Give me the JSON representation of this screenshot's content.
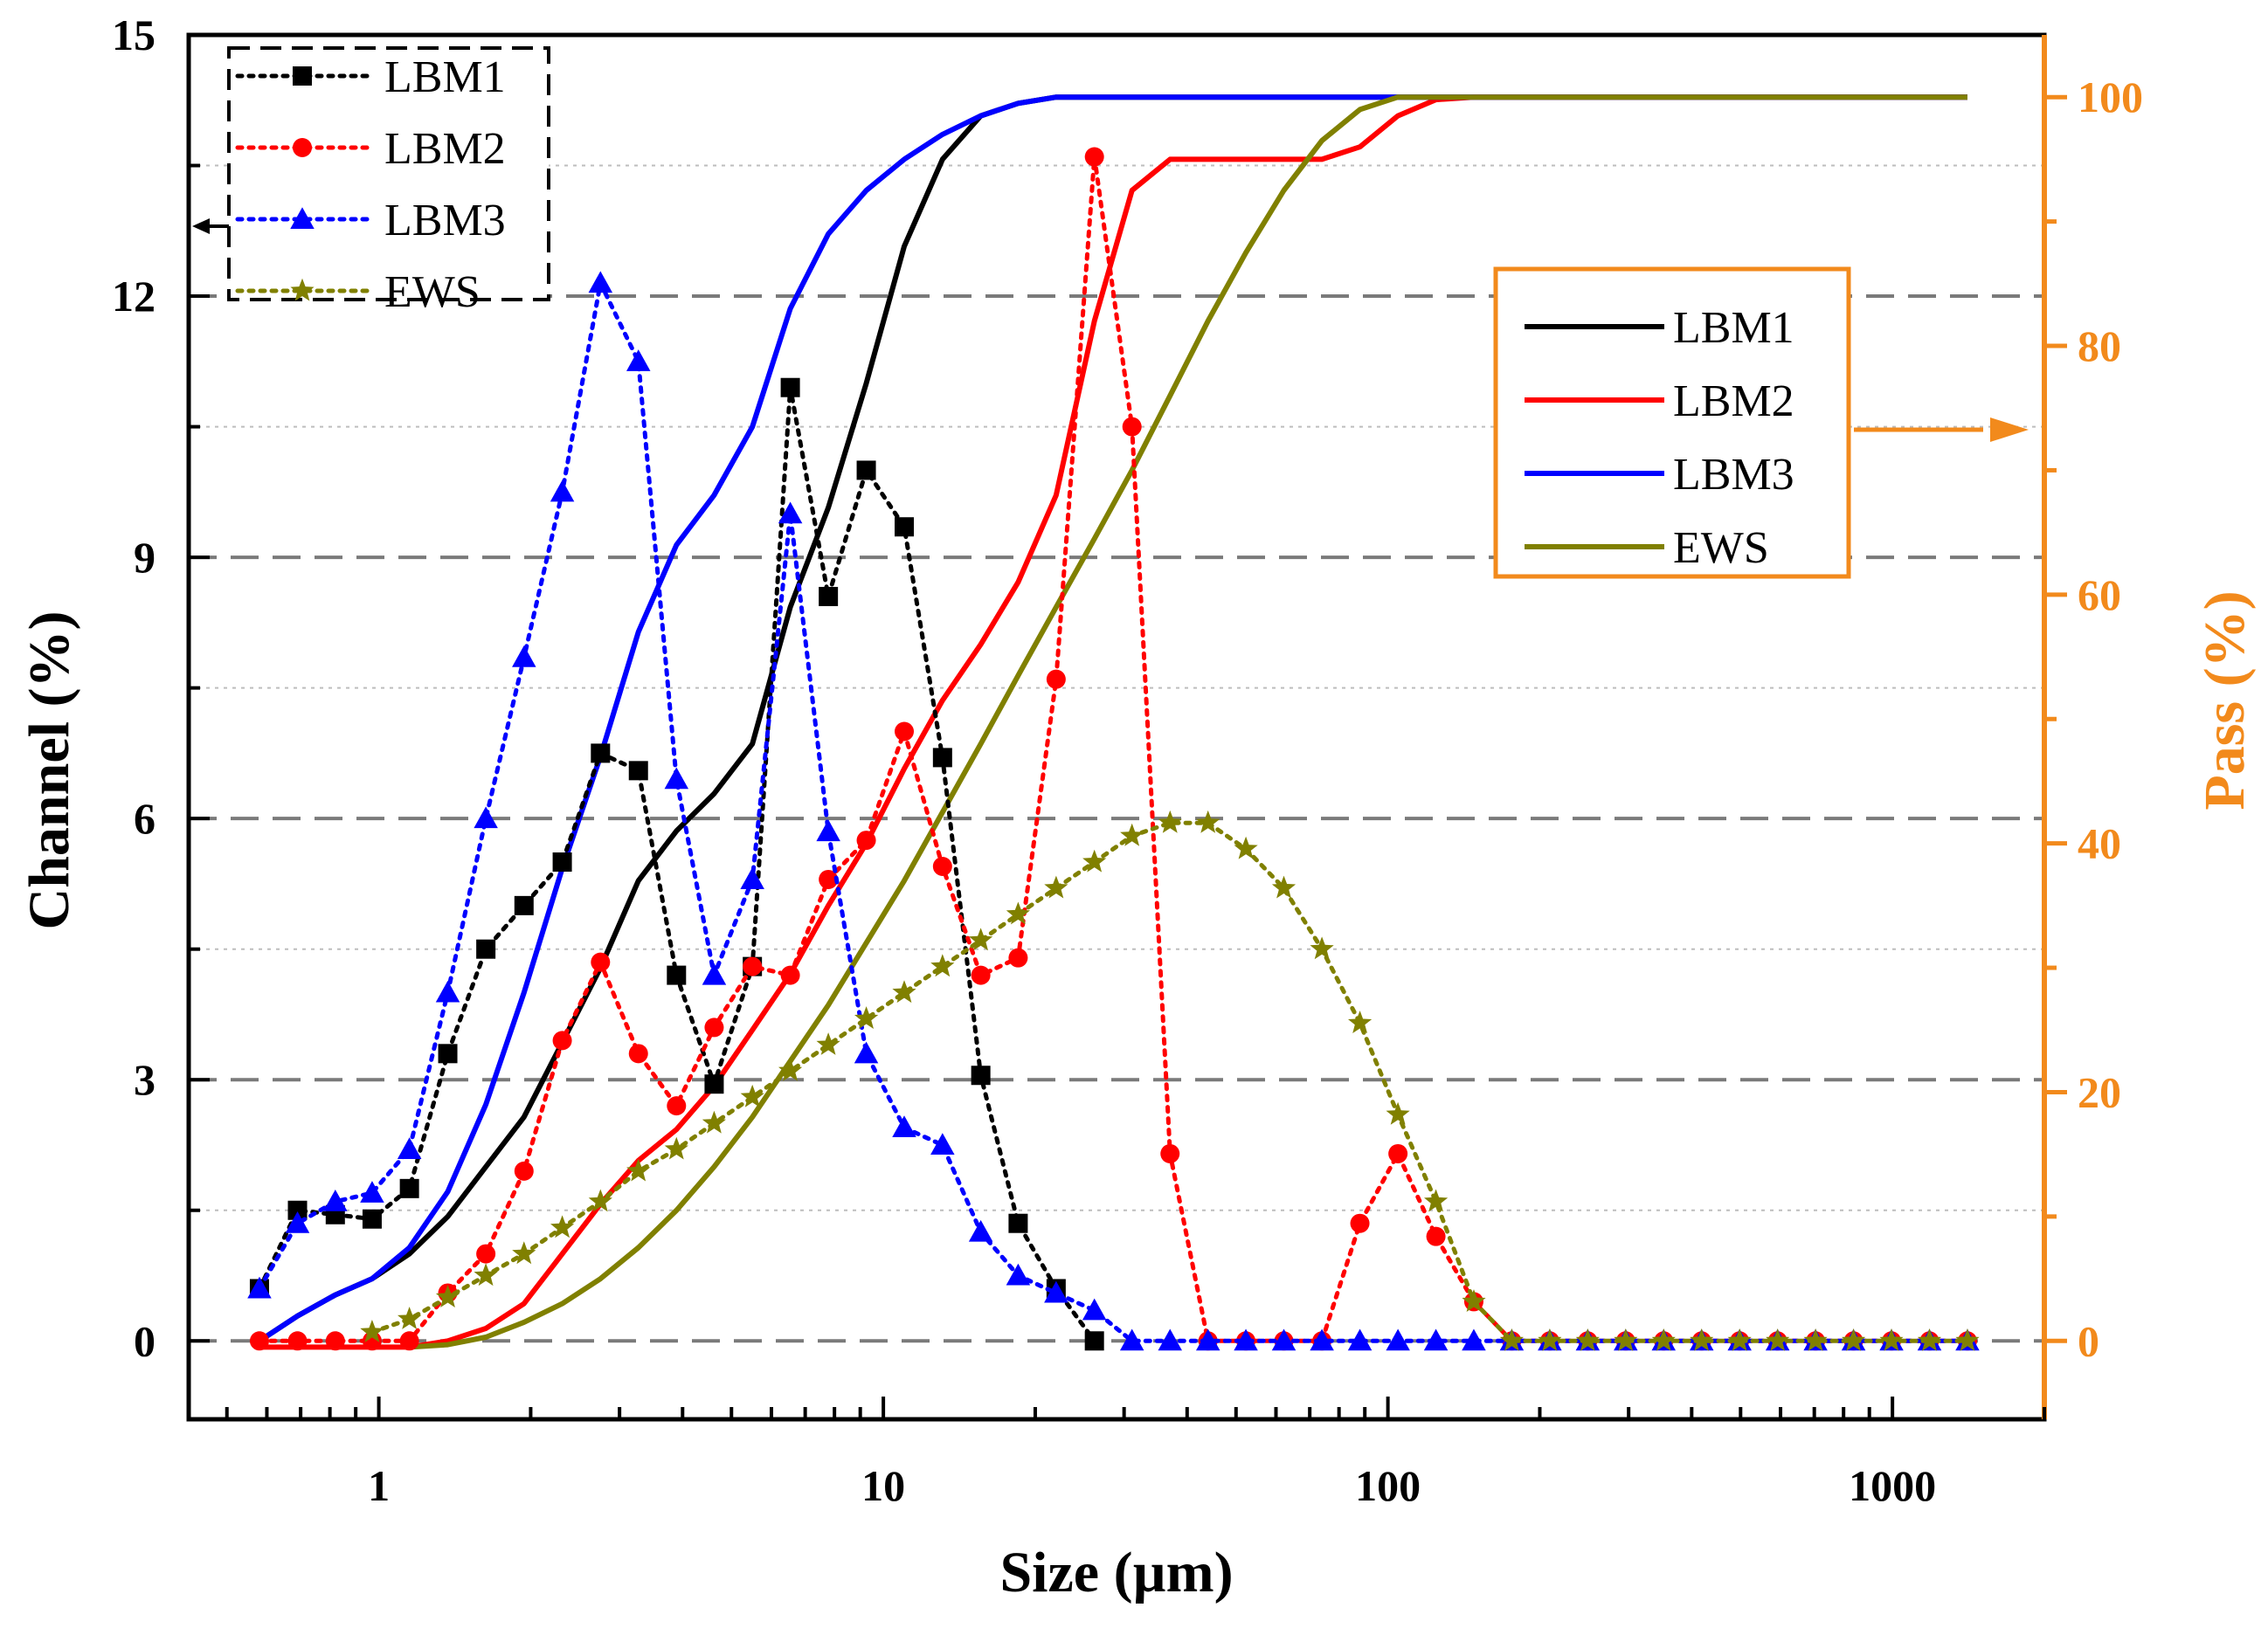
{
  "chart_data": {
    "type": "line",
    "xlabel": "Size (µm)",
    "ylabel_left": "Channel (%)",
    "ylabel_right": "Pass (%)",
    "x_scale": "log",
    "xlim": [
      0.42,
      2000
    ],
    "ylim_left": [
      -0.9,
      15
    ],
    "ylim_right": [
      -6.3,
      105
    ],
    "x_ticks": [
      {
        "value": 1,
        "label": "1"
      },
      {
        "value": 10,
        "label": "10"
      },
      {
        "value": 100,
        "label": "100"
      },
      {
        "value": 1000,
        "label": "1000"
      }
    ],
    "y_left_ticks": [
      {
        "value": 0,
        "label": "0"
      },
      {
        "value": 3,
        "label": "3"
      },
      {
        "value": 6,
        "label": "6"
      },
      {
        "value": 9,
        "label": "9"
      },
      {
        "value": 12,
        "label": "12"
      },
      {
        "value": 15,
        "label": "15"
      }
    ],
    "y_right_ticks": [
      {
        "value": 0,
        "label": "0"
      },
      {
        "value": 20,
        "label": "20"
      },
      {
        "value": 40,
        "label": "40"
      },
      {
        "value": 60,
        "label": "60"
      },
      {
        "value": 80,
        "label": "80"
      },
      {
        "value": 100,
        "label": "100"
      }
    ],
    "grid": {
      "major": "dashed gray at left-axis ticks",
      "minor": "dotted light gray"
    },
    "right_axis_color": "#f28a1c",
    "channel_x": [
      0.58,
      0.69,
      0.82,
      0.97,
      1.15,
      1.37,
      1.63,
      1.94,
      2.31,
      2.75,
      3.27,
      3.89,
      4.62,
      5.5,
      6.54,
      7.78,
      9.25,
      11.0,
      13.1,
      15.6,
      18.5,
      22.0,
      26.2,
      31.1,
      37.0,
      44.0,
      52.3,
      62.2,
      74.0,
      88.0,
      104.7,
      124.5,
      148.0,
      176.0,
      209.3,
      248.9,
      296.0,
      352.0,
      418.6,
      497.8,
      592.0,
      704.0,
      837.2,
      995.6,
      1184.0,
      1408.0
    ],
    "pass_x": [
      0.58,
      0.69,
      0.82,
      0.97,
      1.15,
      1.37,
      1.63,
      1.94,
      2.31,
      2.75,
      3.27,
      3.89,
      4.62,
      5.5,
      6.54,
      7.78,
      9.25,
      11.0,
      13.1,
      15.6,
      18.5,
      22.0,
      26.2,
      31.1,
      37.0,
      44.0,
      52.3,
      62.2,
      74.0,
      88.0,
      104.7,
      124.5,
      148.0,
      176.0,
      209.3,
      248.9,
      296.0,
      352.0,
      418.6,
      497.8,
      592.0,
      704.0,
      837.2,
      995.6,
      1184.0,
      1408.0
    ],
    "legend_channel": {
      "position": "top-left",
      "border": "dashed black",
      "arrow": "left"
    },
    "legend_pass": {
      "position": "right",
      "border": "#f28a1c",
      "arrow": "right"
    },
    "series": [
      {
        "name": "LBM1",
        "axis": "left",
        "kind": "channel",
        "color": "#000000",
        "marker": "square",
        "values": [
          0.6,
          1.5,
          1.45,
          1.4,
          1.75,
          3.3,
          4.5,
          5.0,
          5.5,
          6.75,
          6.55,
          4.2,
          2.95,
          4.3,
          10.95,
          8.55,
          10.0,
          9.35,
          6.7,
          3.05,
          1.35,
          0.6,
          0.0,
          null,
          null,
          null,
          null,
          null,
          null,
          null,
          null,
          null,
          null,
          null,
          null,
          null,
          null,
          null,
          null,
          null,
          null,
          null,
          null,
          null,
          null,
          null
        ]
      },
      {
        "name": "LBM2",
        "axis": "left",
        "kind": "channel",
        "color": "#ff0000",
        "marker": "circle",
        "values": [
          0.0,
          0.0,
          0.0,
          0.0,
          0.0,
          0.55,
          1.0,
          1.95,
          3.45,
          4.35,
          3.3,
          2.7,
          3.6,
          4.3,
          4.2,
          5.3,
          5.75,
          7.0,
          5.45,
          4.2,
          4.4,
          7.6,
          13.6,
          10.5,
          2.15,
          0.0,
          0.0,
          0.0,
          0.0,
          1.35,
          2.15,
          1.2,
          0.45,
          0.0,
          0.0,
          0.0,
          0.0,
          0.0,
          0.0,
          0.0,
          0.0,
          0.0,
          0.0,
          0.0,
          0.0,
          0.0
        ]
      },
      {
        "name": "LBM3",
        "axis": "left",
        "kind": "channel",
        "color": "#0000ff",
        "marker": "triangle",
        "values": [
          0.6,
          1.35,
          1.6,
          1.7,
          2.2,
          4.0,
          6.0,
          7.85,
          9.75,
          12.15,
          11.25,
          6.45,
          4.2,
          5.3,
          9.5,
          5.85,
          3.3,
          2.45,
          2.25,
          1.25,
          0.75,
          0.55,
          0.35,
          0.0,
          0.0,
          0.0,
          0.0,
          0.0,
          0.0,
          0.0,
          0.0,
          0.0,
          0.0,
          0.0,
          0.0,
          0.0,
          0.0,
          0.0,
          0.0,
          0.0,
          0.0,
          0.0,
          0.0,
          0.0,
          0.0,
          0.0
        ]
      },
      {
        "name": "EWS",
        "axis": "left",
        "kind": "channel",
        "color": "#808000",
        "marker": "star",
        "values": [
          null,
          null,
          null,
          0.1,
          0.25,
          0.5,
          0.75,
          1.0,
          1.3,
          1.6,
          1.95,
          2.2,
          2.5,
          2.8,
          3.1,
          3.4,
          3.7,
          4.0,
          4.3,
          4.6,
          4.9,
          5.2,
          5.5,
          5.8,
          5.95,
          5.95,
          5.65,
          5.2,
          4.5,
          3.65,
          2.6,
          1.6,
          0.45,
          0.0,
          0.0,
          0.0,
          0.0,
          0.0,
          0.0,
          0.0,
          0.0,
          0.0,
          0.0,
          0.0,
          0.0,
          0.0
        ]
      },
      {
        "name": "LBM1",
        "axis": "right",
        "kind": "pass",
        "color": "#000000",
        "values": [
          0.0,
          2.0,
          3.7,
          5.0,
          7.0,
          10.0,
          14.0,
          18.0,
          24.0,
          30.0,
          37.0,
          41.0,
          44.0,
          48.0,
          59.0,
          67.0,
          77.0,
          88.0,
          95.0,
          98.5,
          99.5,
          100.0,
          100.0,
          100.0,
          100.0,
          100.0,
          100.0,
          100.0,
          100.0,
          100.0,
          100.0,
          100.0,
          100.0,
          100.0,
          100.0,
          100.0,
          100.0,
          100.0,
          100.0,
          100.0,
          100.0,
          100.0,
          100.0,
          100.0,
          100.0,
          100.0
        ]
      },
      {
        "name": "LBM2",
        "axis": "right",
        "kind": "pass",
        "color": "#ff0000",
        "values": [
          -0.5,
          -0.5,
          -0.5,
          -0.5,
          -0.5,
          0.0,
          1.0,
          3.0,
          7.0,
          11.0,
          14.5,
          17.0,
          20.5,
          25.0,
          29.5,
          35.0,
          40.0,
          46.0,
          51.5,
          56.0,
          61.0,
          68.0,
          82.0,
          92.5,
          95.0,
          95.0,
          95.0,
          95.0,
          95.0,
          96.0,
          98.5,
          99.8,
          100.0,
          100.0,
          100.0,
          100.0,
          100.0,
          100.0,
          100.0,
          100.0,
          100.0,
          100.0,
          100.0,
          100.0,
          100.0,
          100.0
        ]
      },
      {
        "name": "LBM3",
        "axis": "right",
        "kind": "pass",
        "color": "#0000ff",
        "values": [
          0.0,
          2.0,
          3.7,
          5.0,
          7.5,
          12.0,
          19.0,
          28.0,
          38.0,
          47.0,
          57.0,
          64.0,
          68.0,
          73.5,
          83.0,
          89.0,
          92.5,
          95.0,
          97.0,
          98.5,
          99.5,
          100.0,
          100.0,
          100.0,
          100.0,
          100.0,
          100.0,
          100.0,
          100.0,
          100.0,
          100.0,
          100.0,
          100.0,
          100.0,
          100.0,
          100.0,
          100.0,
          100.0,
          100.0,
          100.0,
          100.0,
          100.0,
          100.0,
          100.0,
          100.0,
          100.0
        ]
      },
      {
        "name": "EWS",
        "axis": "right",
        "kind": "pass",
        "color": "#808000",
        "values": [
          null,
          null,
          null,
          null,
          -0.5,
          -0.3,
          0.3,
          1.5,
          3.0,
          5.0,
          7.5,
          10.5,
          14.0,
          18.0,
          22.5,
          27.0,
          32.0,
          37.0,
          42.5,
          48.0,
          53.5,
          59.0,
          64.5,
          70.0,
          76.0,
          82.0,
          87.5,
          92.5,
          96.5,
          99.0,
          100.0,
          100.0,
          100.0,
          100.0,
          100.0,
          100.0,
          100.0,
          100.0,
          100.0,
          100.0,
          100.0,
          100.0,
          100.0,
          100.0,
          100.0,
          100.0
        ]
      }
    ]
  }
}
